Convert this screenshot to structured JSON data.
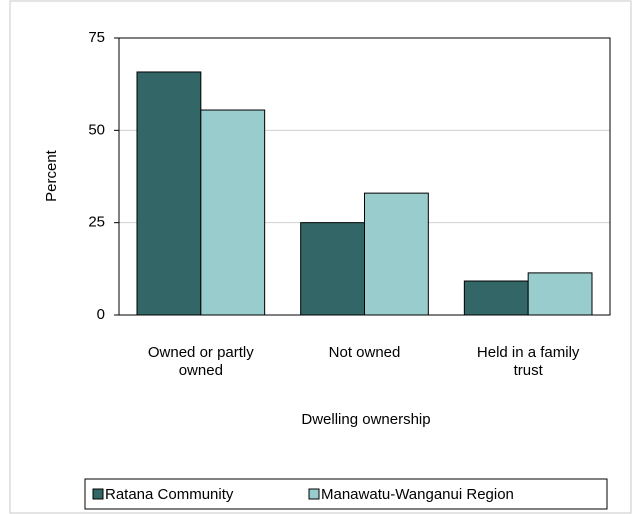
{
  "chart_data": {
    "type": "bar",
    "categories": [
      "Owned or partly owned",
      "Not owned",
      "Held in a family trust"
    ],
    "series": [
      {
        "name": "Ratana Community",
        "color": "#336666",
        "values": [
          65.8,
          25,
          9.2
        ]
      },
      {
        "name": "Manawatu-Wanganui Region",
        "color": "#99cccc",
        "values": [
          55.5,
          33,
          11.4
        ]
      }
    ],
    "y_label": "Percent",
    "x_label": "Dwelling ownership",
    "ylim": [
      0,
      75
    ],
    "yticks": [
      0,
      25,
      50,
      75
    ],
    "grid": true,
    "legend": "bottom"
  }
}
